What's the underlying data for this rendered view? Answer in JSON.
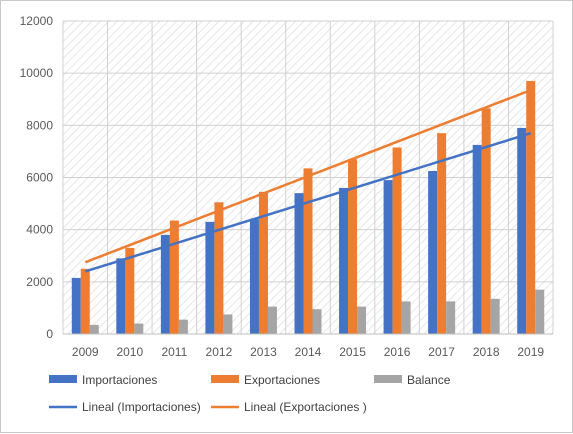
{
  "chart_data": {
    "type": "bar",
    "categories": [
      "2009",
      "2010",
      "2011",
      "2012",
      "2013",
      "2014",
      "2015",
      "2016",
      "2017",
      "2018",
      "2019"
    ],
    "series": [
      {
        "name": "Importaciones",
        "color": "#4472c4",
        "values": [
          2150,
          2900,
          3800,
          4300,
          4400,
          5400,
          5600,
          5900,
          6250,
          7250,
          7900
        ]
      },
      {
        "name": "Exportaciones",
        "color": "#ed7d31",
        "values": [
          2500,
          3300,
          4350,
          5050,
          5450,
          6350,
          6700,
          7150,
          7700,
          8650,
          9700
        ]
      },
      {
        "name": "Balance",
        "color": "#a5a5a5",
        "values": [
          350,
          400,
          550,
          750,
          1050,
          950,
          1050,
          1250,
          1250,
          1350,
          1700
        ]
      }
    ],
    "trendlines": [
      {
        "name": "Lineal (Importaciones)",
        "color": "#4472c4",
        "start": 2400,
        "end": 7700
      },
      {
        "name": "Lineal (Exportaciones )",
        "color": "#ed7d31",
        "start": 2750,
        "end": 9350
      }
    ],
    "y_ticks": [
      "0",
      "2000",
      "4000",
      "6000",
      "8000",
      "10000",
      "12000"
    ],
    "ylim": [
      0,
      12000
    ],
    "grid": true,
    "legend_position": "bottom"
  }
}
